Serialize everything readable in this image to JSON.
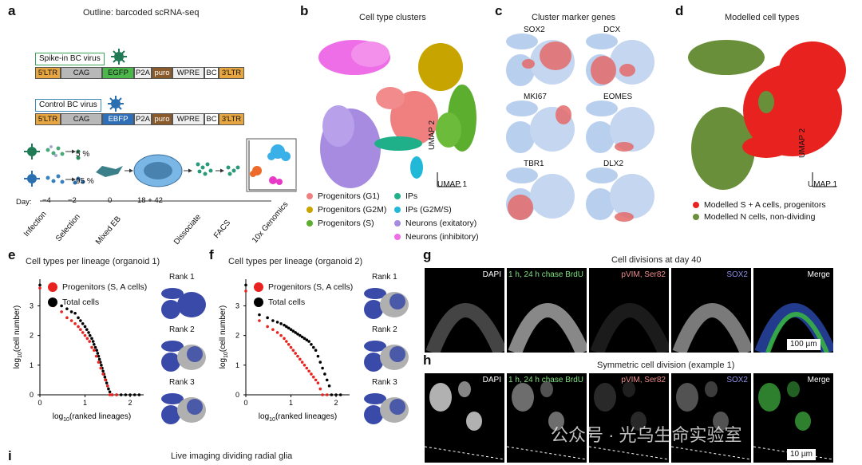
{
  "panels": {
    "a": {
      "label": "a",
      "title": "Outline: barcoded scRNA-seq",
      "spike_virus": "Spike-in BC virus",
      "control_virus": "Control BC virus",
      "spike_segments": [
        "5'LTR",
        "CAG",
        "EGFP",
        "P2A",
        "puro",
        "WPRE",
        "BC",
        "3'LTR"
      ],
      "control_segments": [
        "5'LTR",
        "CAG",
        "EBFP",
        "P2A",
        "puro",
        "WPRE",
        "BC",
        "3'LTR"
      ],
      "pct_spike": "5 %",
      "pct_control": "95 %",
      "day_label": "Day:",
      "days": [
        "−4",
        "−2",
        "0",
        "18 + 42"
      ],
      "steps": [
        "Infection",
        "Selection",
        "Mixed EB",
        "Dissociate",
        "FACS",
        "10x Genomics"
      ]
    },
    "b": {
      "label": "b",
      "title": "Cell type clusters",
      "umap_y": "UMAP 2",
      "umap_x": "UMAP 1",
      "legend": [
        {
          "text": "Progenitors (G1)",
          "color": "#f08080"
        },
        {
          "text": "Progenitors (G2M)",
          "color": "#c8a400"
        },
        {
          "text": "Progenitors (S)",
          "color": "#5cae2e"
        },
        {
          "text": "IPs",
          "color": "#1fb08a"
        },
        {
          "text": "IPs (G2M/S)",
          "color": "#22b8d8"
        },
        {
          "text": "Neurons (exitatory)",
          "color": "#a78be0"
        },
        {
          "text": "Neurons (inhibitory)",
          "color": "#ee6ee8"
        }
      ]
    },
    "c": {
      "label": "c",
      "title": "Cluster marker genes",
      "genes": [
        "SOX2",
        "DCX",
        "MKI67",
        "EOMES",
        "TBR1",
        "DLX2"
      ]
    },
    "d": {
      "label": "d",
      "title": "Modelled cell types",
      "umap_y": "UMAP 2",
      "umap_x": "UMAP 1",
      "legend": [
        {
          "text": "Modelled S + A cells, progenitors",
          "color": "#e8231f"
        },
        {
          "text": "Modelled N cells, non-dividing",
          "color": "#6a8f3a"
        }
      ]
    },
    "e": {
      "label": "e",
      "title": "Cell types per lineage (organoid 1)",
      "legend": [
        {
          "text": "Progenitors (S, A cells)",
          "color": "#e8231f"
        },
        {
          "text": "Total cells",
          "color": "#000000"
        }
      ],
      "ranks": [
        "Rank 1",
        "Rank 2",
        "Rank 3"
      ]
    },
    "f": {
      "label": "f",
      "title": "Cell types per lineage (organoid 2)",
      "legend": [
        {
          "text": "Progenitors (S, A cells)",
          "color": "#e8231f"
        },
        {
          "text": "Total cells",
          "color": "#000000"
        }
      ],
      "ranks": [
        "Rank 1",
        "Rank 2",
        "Rank 3"
      ]
    },
    "g": {
      "label": "g",
      "title": "Cell divisions at day 40",
      "channels": [
        {
          "text": "DAPI",
          "color": "#ffffff"
        },
        {
          "text": "1 h, 24 h chase BrdU",
          "color": "#7ee07e"
        },
        {
          "text": "pVIM, Ser82",
          "color": "#f08a8a"
        },
        {
          "text": "SOX2",
          "color": "#8e8ee8"
        },
        {
          "text": "Merge",
          "color": "#ffffff"
        }
      ],
      "scalebar": "100 µm"
    },
    "h": {
      "label": "h",
      "title": "Symmetric cell division (example 1)",
      "channels": [
        {
          "text": "DAPI",
          "color": "#ffffff"
        },
        {
          "text": "1 h, 24 h chase BrdU",
          "color": "#7ee07e"
        },
        {
          "text": "pVIM, Ser82",
          "color": "#f08a8a"
        },
        {
          "text": "SOX2",
          "color": "#8e8ee8"
        },
        {
          "text": "Merge",
          "color": "#ffffff"
        }
      ],
      "scalebar": "10 µm",
      "watermark": "公众号 · 光乌生命实验室"
    },
    "i": {
      "label": "i",
      "title": "Live imaging dividing radial glia"
    }
  },
  "chart_data": [
    {
      "type": "scatter",
      "title": "Cell types per lineage (organoid 1)",
      "xlabel": "log10(ranked lineages)",
      "ylabel": "log10(cell number)",
      "xlim": [
        0,
        2.3
      ],
      "ylim": [
        0,
        3.9
      ],
      "xticks": [
        0,
        1,
        2
      ],
      "yticks": [
        0,
        1,
        2,
        3
      ],
      "series": [
        {
          "name": "Total cells",
          "color": "#000000",
          "x": [
            0.0,
            0.3,
            0.48,
            0.6,
            0.7,
            0.78,
            0.85,
            0.9,
            0.95,
            1.0,
            1.04,
            1.08,
            1.11,
            1.15,
            1.18,
            1.2,
            1.23,
            1.26,
            1.28,
            1.3,
            1.32,
            1.34,
            1.36,
            1.38,
            1.4,
            1.42,
            1.44,
            1.46,
            1.48,
            1.5,
            1.52,
            1.55,
            1.6,
            1.7,
            1.8,
            1.9,
            2.0,
            2.1,
            2.2
          ],
          "y": [
            3.7,
            3.2,
            3.0,
            2.9,
            2.8,
            2.75,
            2.6,
            2.5,
            2.4,
            2.3,
            2.2,
            2.1,
            2.0,
            1.9,
            1.8,
            1.7,
            1.6,
            1.5,
            1.4,
            1.3,
            1.2,
            1.1,
            1.0,
            0.9,
            0.8,
            0.7,
            0.6,
            0.5,
            0.4,
            0.3,
            0.2,
            0.1,
            0.0,
            0.0,
            0.0,
            0.0,
            0.0,
            0.0,
            0.0
          ]
        },
        {
          "name": "Progenitors (S, A cells)",
          "color": "#e8231f",
          "x": [
            0.0,
            0.3,
            0.48,
            0.6,
            0.7,
            0.78,
            0.85,
            0.9,
            0.95,
            1.0,
            1.05,
            1.1,
            1.15,
            1.2,
            1.25,
            1.3,
            1.35,
            1.4,
            1.45,
            1.5,
            1.55,
            1.6,
            1.7
          ],
          "y": [
            3.6,
            3.0,
            2.8,
            2.6,
            2.5,
            2.4,
            2.3,
            2.2,
            2.1,
            2.0,
            1.9,
            1.8,
            1.6,
            1.5,
            1.3,
            1.1,
            0.9,
            0.7,
            0.5,
            0.3,
            0.0,
            0.0,
            0.0
          ]
        }
      ]
    },
    {
      "type": "scatter",
      "title": "Cell types per lineage (organoid 2)",
      "xlabel": "log10(ranked lineages)",
      "ylabel": "log10(cell number)",
      "xlim": [
        0,
        2.3
      ],
      "ylim": [
        0,
        3.9
      ],
      "xticks": [
        0,
        1,
        2
      ],
      "yticks": [
        0,
        1,
        2,
        3
      ],
      "series": [
        {
          "name": "Total cells",
          "color": "#000000",
          "x": [
            0.0,
            0.3,
            0.48,
            0.6,
            0.7,
            0.78,
            0.85,
            0.9,
            0.95,
            1.0,
            1.05,
            1.1,
            1.15,
            1.2,
            1.25,
            1.3,
            1.35,
            1.4,
            1.45,
            1.5,
            1.55,
            1.6,
            1.65,
            1.7,
            1.75,
            1.8,
            1.85,
            1.9,
            2.0,
            2.1
          ],
          "y": [
            3.7,
            2.7,
            2.6,
            2.5,
            2.45,
            2.4,
            2.35,
            2.3,
            2.25,
            2.2,
            2.15,
            2.1,
            2.05,
            2.0,
            1.95,
            1.9,
            1.85,
            1.8,
            1.7,
            1.6,
            1.5,
            1.3,
            1.1,
            0.9,
            0.7,
            0.5,
            0.3,
            0.0,
            0.0,
            0.0
          ]
        },
        {
          "name": "Progenitors (S, A cells)",
          "color": "#e8231f",
          "x": [
            0.0,
            0.3,
            0.48,
            0.6,
            0.7,
            0.78,
            0.85,
            0.9,
            0.95,
            1.0,
            1.05,
            1.1,
            1.15,
            1.2,
            1.25,
            1.3,
            1.35,
            1.4,
            1.45,
            1.5,
            1.55,
            1.6,
            1.65,
            1.7,
            1.8
          ],
          "y": [
            3.5,
            2.5,
            2.3,
            2.2,
            2.1,
            2.0,
            1.9,
            1.8,
            1.7,
            1.6,
            1.5,
            1.4,
            1.3,
            1.2,
            1.1,
            1.0,
            0.9,
            0.8,
            0.7,
            0.6,
            0.5,
            0.4,
            0.2,
            0.0,
            0.0
          ]
        }
      ]
    }
  ]
}
